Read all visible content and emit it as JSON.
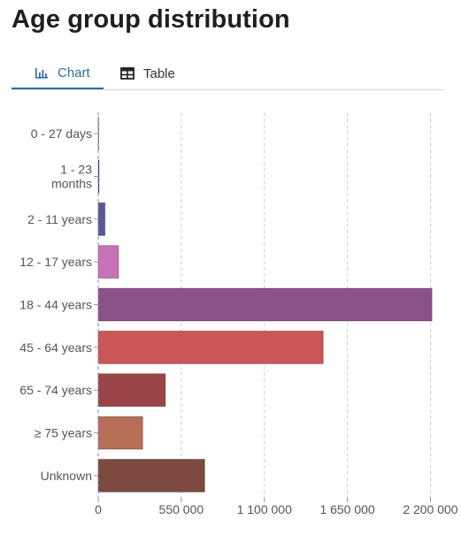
{
  "page": {
    "title": "Age group distribution"
  },
  "tabs": [
    {
      "label": "Chart",
      "icon": "bar-chart-icon",
      "active": true
    },
    {
      "label": "Table",
      "icon": "table-icon",
      "active": false
    }
  ],
  "colors": {
    "accent": "#2c6ea3"
  },
  "chart_data": {
    "type": "bar",
    "orientation": "horizontal",
    "categories": [
      "0 - 27 days",
      "1 - 23 months",
      "2 - 11 years",
      "12 - 17 years",
      "18 - 44 years",
      "45 - 64 years",
      "65 - 74 years",
      "≥ 75 years",
      "Unknown"
    ],
    "values": [
      800,
      6000,
      45000,
      135000,
      2210000,
      1490000,
      445000,
      295000,
      705000
    ],
    "colors": [
      "#4b4a96",
      "#4b4a96",
      "#56589a",
      "#c872b8",
      "#8b5189",
      "#cc5555",
      "#9b4447",
      "#b86f57",
      "#7d4a3f"
    ],
    "xlim": [
      0,
      2250000
    ],
    "xticks": [
      0,
      550000,
      1100000,
      1650000,
      2200000
    ],
    "xtick_labels": [
      "0",
      "550 000",
      "1 100 000",
      "1 650 000",
      "2 200 000"
    ],
    "grid": true,
    "legend": "none"
  }
}
